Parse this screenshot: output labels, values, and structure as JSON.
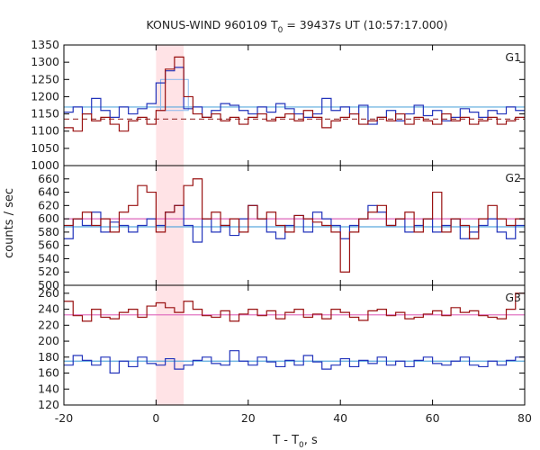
{
  "chart_data": {
    "type": "line",
    "title": "KONUS-WIND 960109 T",
    "title_sub": "0",
    "title_rest": " = 39437s UT (10:57:17.000)",
    "xlabel": "T - T",
    "xlabel_sub": "0",
    "xlabel_rest": ", s",
    "ylabel": "counts / sec",
    "xlim": [
      -20,
      80
    ],
    "xticks": [
      "-20",
      "0",
      "20",
      "40",
      "60",
      "80"
    ],
    "highlight_interval": [
      0,
      6
    ],
    "bin_edges": [
      -20,
      -18,
      -16,
      -14,
      -12,
      -10,
      -8,
      -6,
      -4,
      -2,
      0,
      2,
      4,
      6,
      8,
      10,
      12,
      14,
      16,
      18,
      20,
      22,
      24,
      26,
      28,
      30,
      32,
      34,
      36,
      38,
      40,
      42,
      44,
      46,
      48,
      50,
      52,
      54,
      56,
      58,
      60,
      62,
      64,
      66,
      68,
      70,
      72,
      74,
      76,
      78,
      80
    ],
    "panels": [
      {
        "label": "G1",
        "ylim": [
          1000,
          1350
        ],
        "yticks": [
          "1000",
          "1050",
          "1100",
          "1150",
          "1200",
          "1250",
          "1300",
          "1350"
        ],
        "series": [
          {
            "color": "#2233bb",
            "values": [
              1155,
              1170,
              1150,
              1195,
              1160,
              1140,
              1170,
              1150,
              1165,
              1180,
              1240,
              1275,
              1285,
              1165,
              1170,
              1140,
              1160,
              1180,
              1175,
              1160,
              1150,
              1170,
              1155,
              1180,
              1165,
              1150,
              1140,
              1150,
              1195,
              1160,
              1170,
              1150,
              1175,
              1120,
              1140,
              1160,
              1130,
              1150,
              1175,
              1145,
              1160,
              1130,
              1140,
              1165,
              1155,
              1140,
              1160,
              1150,
              1170,
              1160
            ]
          },
          {
            "color": "#991111",
            "values": [
              1110,
              1100,
              1150,
              1130,
              1140,
              1120,
              1100,
              1130,
              1140,
              1120,
              1160,
              1280,
              1315,
              1200,
              1150,
              1140,
              1150,
              1130,
              1140,
              1120,
              1140,
              1150,
              1130,
              1140,
              1150,
              1130,
              1160,
              1140,
              1110,
              1130,
              1140,
              1150,
              1120,
              1130,
              1140,
              1130,
              1150,
              1120,
              1140,
              1130,
              1120,
              1150,
              1130,
              1140,
              1120,
              1130,
              1140,
              1120,
              1130,
              1140
            ]
          }
        ],
        "background_levels": [
          {
            "color": "#5aa9dd",
            "value": 1170
          },
          {
            "color": "#993333",
            "value": 1135,
            "dashed": true
          }
        ],
        "box": {
          "x": [
            1,
            7
          ],
          "y": 1250,
          "color": "#88b8ee"
        }
      },
      {
        "label": "G2",
        "ylim": [
          500,
          680
        ],
        "yticks": [
          "500",
          "520",
          "540",
          "560",
          "580",
          "600",
          "620",
          "640",
          "660"
        ],
        "series": [
          {
            "color": "#2233bb",
            "values": [
              570,
              600,
              590,
              610,
              580,
              595,
              590,
              580,
              590,
              600,
              590,
              610,
              620,
              590,
              565,
              600,
              580,
              590,
              575,
              600,
              620,
              600,
              580,
              570,
              590,
              605,
              580,
              610,
              600,
              590,
              570,
              590,
              600,
              620,
              610,
              590,
              600,
              580,
              590,
              600,
              580,
              590,
              600,
              570,
              580,
              590,
              600,
              580,
              570,
              590
            ]
          },
          {
            "color": "#991111",
            "values": [
              590,
              600,
              610,
              590,
              600,
              580,
              610,
              620,
              650,
              640,
              580,
              610,
              620,
              650,
              660,
              600,
              610,
              590,
              600,
              580,
              620,
              600,
              610,
              590,
              580,
              605,
              600,
              595,
              590,
              580,
              520,
              580,
              600,
              610,
              620,
              590,
              600,
              610,
              580,
              600,
              640,
              580,
              600,
              590,
              570,
              600,
              620,
              600,
              590,
              600
            ]
          }
        ],
        "background_levels": [
          {
            "color": "#5aa9dd",
            "value": 588
          },
          {
            "color": "#dd66bb",
            "value": 600
          }
        ]
      },
      {
        "label": "G3",
        "ylim": [
          120,
          270
        ],
        "yticks": [
          "120",
          "140",
          "160",
          "180",
          "200",
          "220",
          "240",
          "260"
        ],
        "series": [
          {
            "color": "#2233bb",
            "values": [
              170,
              182,
              176,
              170,
              180,
              160,
              175,
              168,
              180,
              172,
              170,
              178,
              165,
              170,
              176,
              180,
              172,
              170,
              188,
              175,
              170,
              180,
              174,
              168,
              176,
              170,
              182,
              174,
              165,
              170,
              178,
              168,
              176,
              172,
              180,
              170,
              175,
              168,
              176,
              180,
              172,
              170,
              175,
              180,
              170,
              168,
              175,
              170,
              176,
              180
            ]
          },
          {
            "color": "#991111",
            "values": [
              250,
              232,
              225,
              240,
              230,
              228,
              236,
              240,
              230,
              244,
              248,
              242,
              236,
              250,
              240,
              232,
              230,
              238,
              225,
              234,
              240,
              232,
              238,
              228,
              236,
              240,
              230,
              234,
              228,
              240,
              236,
              230,
              226,
              238,
              240,
              232,
              236,
              228,
              230,
              234,
              238,
              232,
              242,
              236,
              238,
              232,
              230,
              228,
              240,
              260
            ]
          }
        ],
        "background_levels": [
          {
            "color": "#5aa9dd",
            "value": 175
          },
          {
            "color": "#dd66bb",
            "value": 233
          }
        ]
      }
    ]
  }
}
